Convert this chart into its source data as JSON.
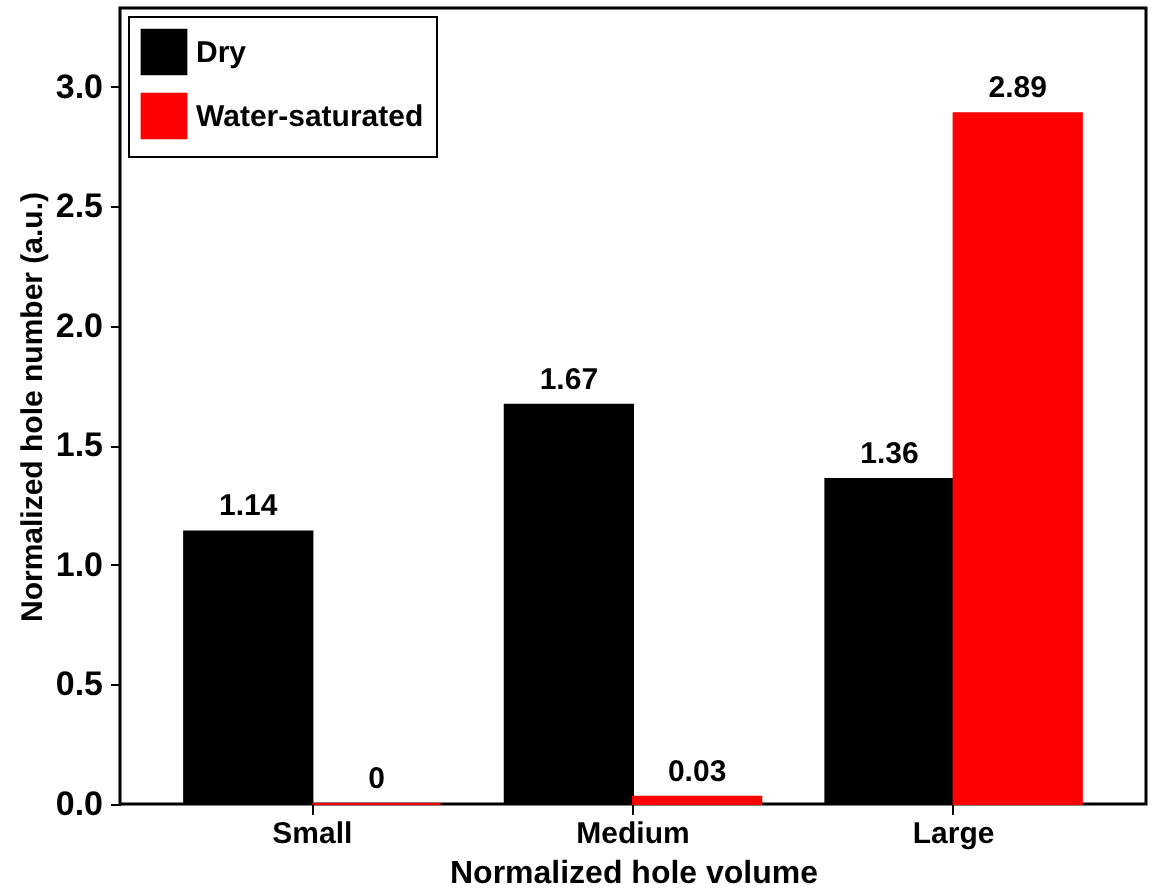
{
  "chart_data": {
    "type": "bar",
    "xlabel": "Normalized hole volume",
    "ylabel": "Normalized hole number (a.u.)",
    "categories": [
      "Small",
      "Medium",
      "Large"
    ],
    "series": [
      {
        "name": "Dry",
        "color": "#000000",
        "values": [
          1.14,
          1.67,
          1.36
        ]
      },
      {
        "name": "Water-saturated",
        "color": "#ff0000",
        "values": [
          0,
          0.03,
          2.89
        ]
      }
    ],
    "ylim": [
      0,
      3.33
    ],
    "yticks": [
      {
        "value": 0,
        "label": "0.0"
      },
      0.5,
      {
        "value": 1,
        "label": "1.0"
      },
      1.5,
      {
        "value": 2,
        "label": "2.0"
      },
      2.5,
      {
        "value": 3,
        "label": "3.0"
      }
    ],
    "data_labels": true,
    "legend": "top left",
    "grid": false
  }
}
